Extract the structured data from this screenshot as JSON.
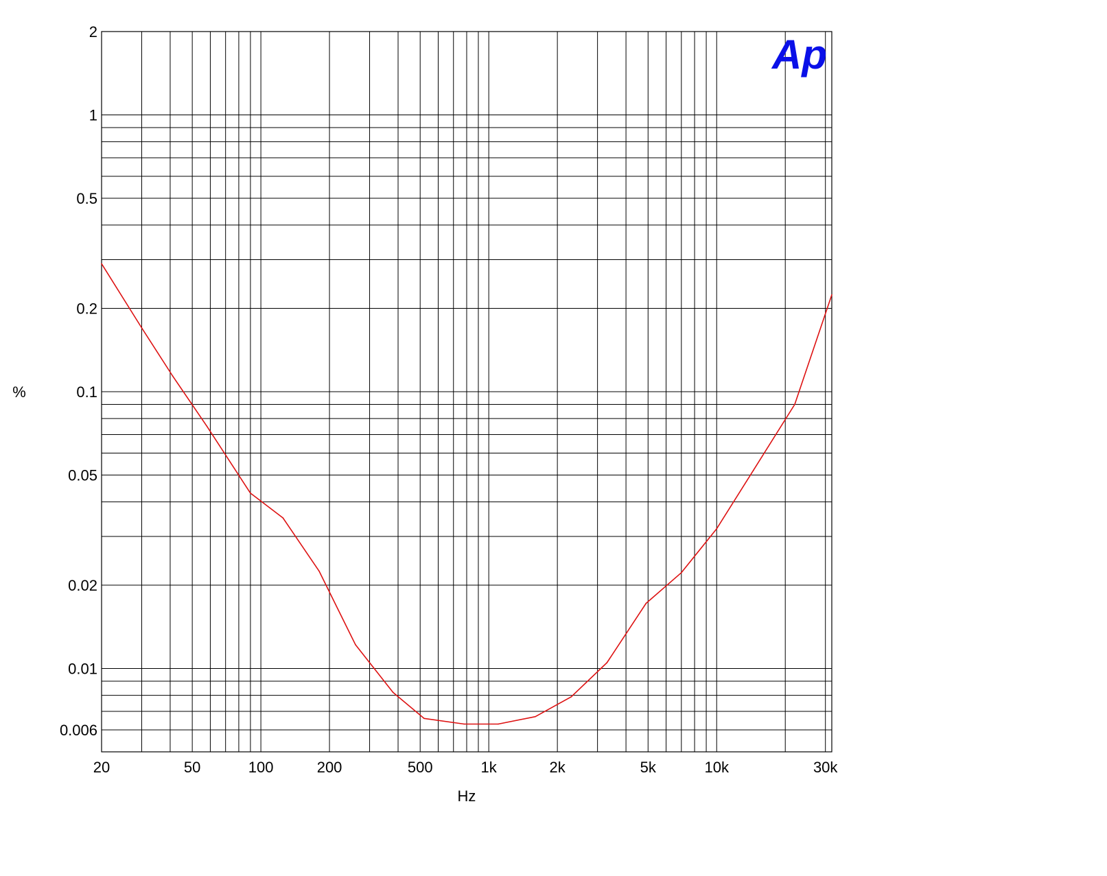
{
  "logo": {
    "text": "Ap",
    "color": "#0a10e8"
  },
  "chart_data": {
    "type": "line",
    "title": "",
    "xlabel": "Hz",
    "ylabel": "%",
    "x_scale": "log",
    "y_scale": "log",
    "xlim": [
      20,
      32000
    ],
    "ylim": [
      0.005,
      2
    ],
    "grid": true,
    "x_ticks": [
      {
        "value": 20,
        "label": "20"
      },
      {
        "value": 50,
        "label": "50"
      },
      {
        "value": 100,
        "label": "100"
      },
      {
        "value": 200,
        "label": "200"
      },
      {
        "value": 500,
        "label": "500"
      },
      {
        "value": 1000,
        "label": "1k"
      },
      {
        "value": 2000,
        "label": "2k"
      },
      {
        "value": 5000,
        "label": "5k"
      },
      {
        "value": 10000,
        "label": "10k"
      },
      {
        "value": 30000,
        "label": "30k"
      }
    ],
    "x_gridlines": [
      30,
      40,
      50,
      60,
      70,
      80,
      90,
      100,
      200,
      300,
      400,
      500,
      600,
      700,
      800,
      900,
      1000,
      2000,
      3000,
      4000,
      5000,
      6000,
      7000,
      8000,
      9000,
      10000,
      20000,
      30000
    ],
    "y_ticks": [
      {
        "value": 2,
        "label": "2"
      },
      {
        "value": 1,
        "label": "1"
      },
      {
        "value": 0.5,
        "label": "0.5"
      },
      {
        "value": 0.2,
        "label": "0.2"
      },
      {
        "value": 0.1,
        "label": "0.1"
      },
      {
        "value": 0.05,
        "label": "0.05"
      },
      {
        "value": 0.02,
        "label": "0.02"
      },
      {
        "value": 0.01,
        "label": "0.01"
      },
      {
        "value": 0.006,
        "label": "0.006"
      }
    ],
    "y_gridlines": [
      0.006,
      0.007,
      0.008,
      0.009,
      0.01,
      0.02,
      0.03,
      0.04,
      0.05,
      0.06,
      0.07,
      0.08,
      0.09,
      0.1,
      0.2,
      0.3,
      0.4,
      0.5,
      0.6,
      0.7,
      0.8,
      0.9,
      1,
      2
    ],
    "series": [
      {
        "color": "#dd1111",
        "x": [
          20,
          30,
          41,
          58,
          90,
          125,
          180,
          260,
          380,
          520,
          780,
          1100,
          1600,
          2300,
          3300,
          4900,
          7000,
          10000,
          14500,
          22000,
          32000
        ],
        "y": [
          0.29,
          0.17,
          0.114,
          0.075,
          0.043,
          0.035,
          0.0225,
          0.0122,
          0.0082,
          0.0066,
          0.0063,
          0.0063,
          0.0067,
          0.0079,
          0.0105,
          0.0172,
          0.0222,
          0.032,
          0.052,
          0.09,
          0.224
        ]
      }
    ]
  }
}
